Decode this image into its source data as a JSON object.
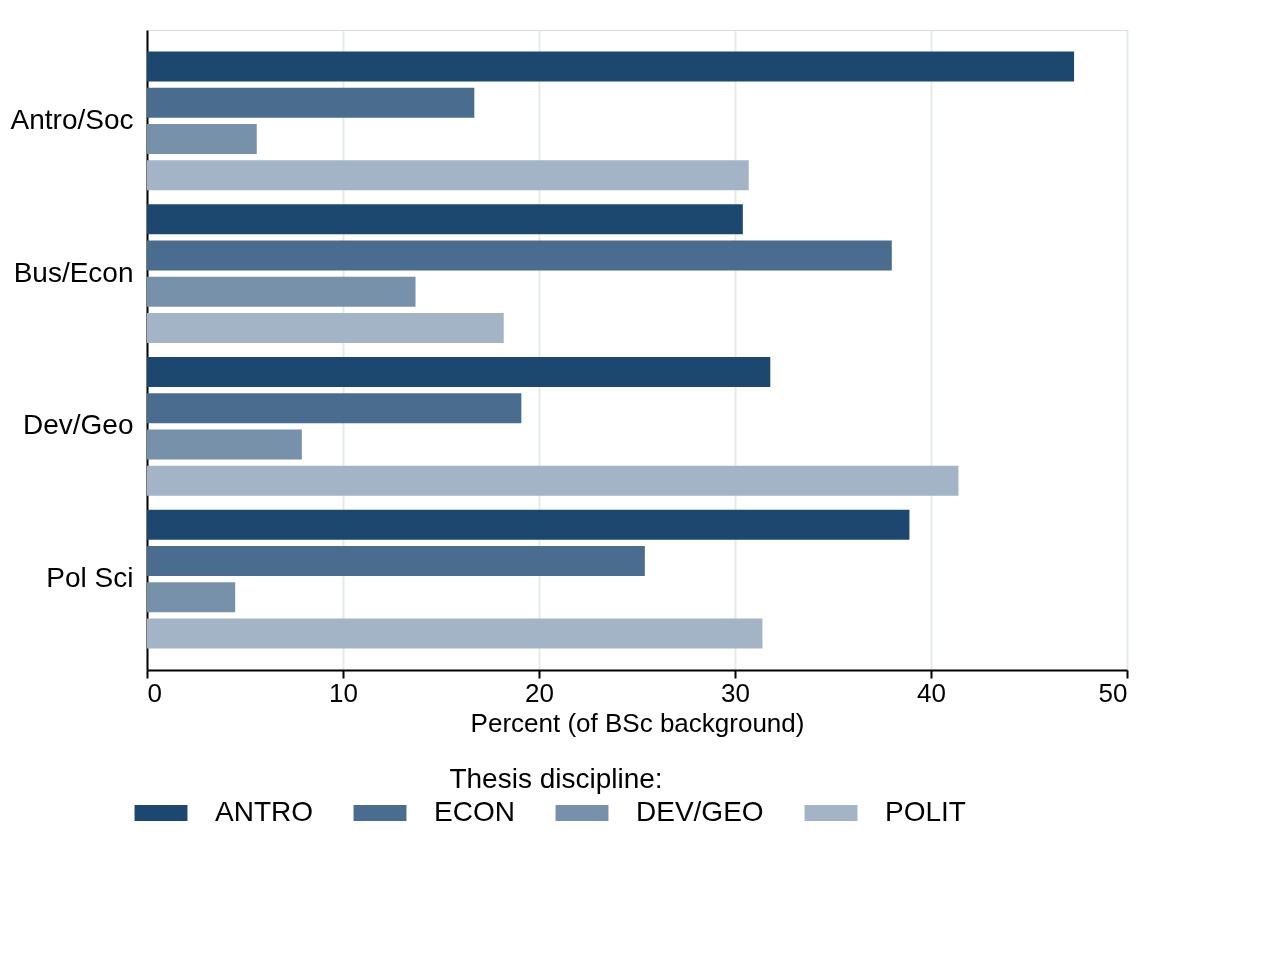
{
  "chart_data": {
    "type": "bar",
    "orientation": "horizontal",
    "xlabel": "Percent (of BSc background)",
    "legend_title": "Thesis discipline:",
    "legend": "bottom",
    "grid": "x",
    "categories": [
      "Antro/Soc",
      "Bus/Econ",
      "Dev/Geo",
      "Pol Sci"
    ],
    "xlim": [
      0,
      50
    ],
    "xticks": [
      0,
      10,
      20,
      30,
      40,
      50
    ],
    "series": [
      {
        "name": "ANTRO",
        "color": "#1c4870",
        "values": [
          47.3,
          30.4,
          31.8,
          38.9
        ]
      },
      {
        "name": "ECON",
        "color": "#4a6d8f",
        "values": [
          16.7,
          38.0,
          19.1,
          25.4
        ]
      },
      {
        "name": "DEV/GEO",
        "color": "#7791ab",
        "values": [
          5.6,
          13.7,
          7.9,
          4.5
        ]
      },
      {
        "name": "POLIT",
        "color": "#a3b4c6",
        "values": [
          30.7,
          18.2,
          41.4,
          31.4
        ]
      }
    ]
  }
}
